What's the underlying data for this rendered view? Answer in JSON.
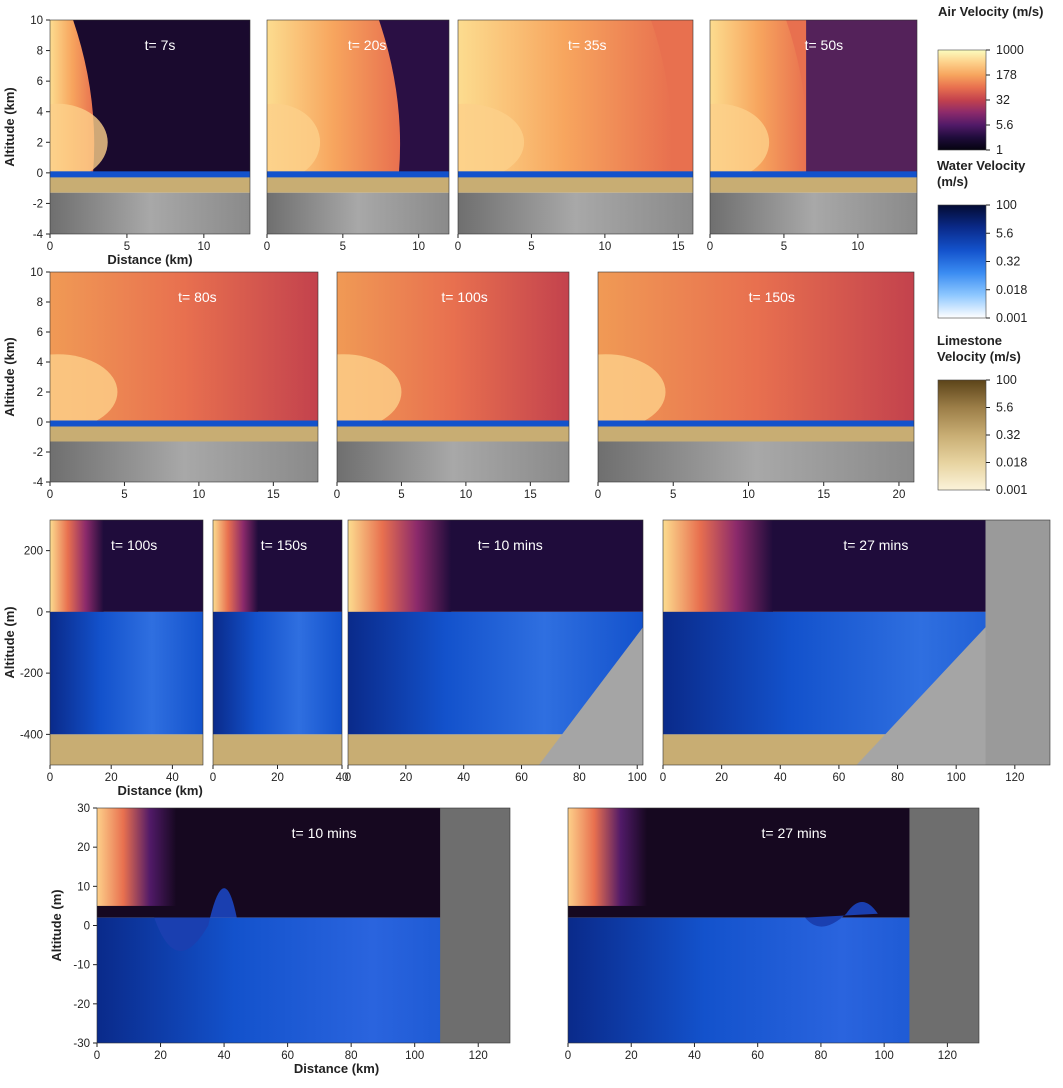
{
  "chart_data": [
    {
      "type": "heatmap",
      "time": "t= 7s",
      "xlim": [
        0,
        13
      ],
      "ylim": [
        -4,
        10
      ],
      "xticks": [
        0,
        5,
        10
      ],
      "yticks": [
        -4,
        -2,
        0,
        2,
        4,
        6,
        8,
        10
      ],
      "xlabel": "Distance (km)",
      "ylabel": "Altitude (km)"
    },
    {
      "type": "heatmap",
      "time": "t= 20s",
      "xlim": [
        0,
        12
      ],
      "ylim": [
        -4,
        10
      ],
      "xticks": [
        0,
        5,
        10
      ],
      "yticks": [],
      "xlabel": "",
      "ylabel": ""
    },
    {
      "type": "heatmap",
      "time": "t= 35s",
      "xlim": [
        0,
        16
      ],
      "ylim": [
        -4,
        10
      ],
      "xticks": [
        0,
        5,
        10,
        15
      ],
      "yticks": [],
      "xlabel": "",
      "ylabel": ""
    },
    {
      "type": "heatmap",
      "time": "t= 50s",
      "xlim": [
        0,
        14
      ],
      "ylim": [
        -4,
        10
      ],
      "xticks": [
        0,
        5,
        10
      ],
      "yticks": [],
      "xlabel": "",
      "ylabel": ""
    },
    {
      "type": "heatmap",
      "time": "t= 80s",
      "xlim": [
        0,
        18
      ],
      "ylim": [
        -4,
        10
      ],
      "xticks": [
        0,
        5,
        10,
        15
      ],
      "yticks": [
        -4,
        -2,
        0,
        2,
        4,
        6,
        8,
        10
      ],
      "xlabel": "",
      "ylabel": "Altitude (km)"
    },
    {
      "type": "heatmap",
      "time": "t= 100s",
      "xlim": [
        0,
        18
      ],
      "ylim": [
        -4,
        10
      ],
      "xticks": [
        0,
        5,
        10,
        15
      ],
      "yticks": [],
      "xlabel": "",
      "ylabel": ""
    },
    {
      "type": "heatmap",
      "time": "t= 150s",
      "xlim": [
        0,
        21
      ],
      "ylim": [
        -4,
        10
      ],
      "xticks": [
        0,
        5,
        10,
        15,
        20
      ],
      "yticks": [],
      "xlabel": "",
      "ylabel": ""
    },
    {
      "type": "heatmap",
      "time": "t= 100s",
      "xlim": [
        0,
        50
      ],
      "ylim": [
        -500,
        300
      ],
      "xticks": [
        0,
        20,
        40
      ],
      "yticks": [
        -400,
        -200,
        0,
        200
      ],
      "xlabel": "Distance (km)",
      "ylabel": "Altitude (m)"
    },
    {
      "type": "heatmap",
      "time": "t= 150s",
      "xlim": [
        0,
        40
      ],
      "ylim": [
        -500,
        300
      ],
      "xticks": [
        0,
        20,
        40
      ],
      "yticks": [],
      "xlabel": "",
      "ylabel": ""
    },
    {
      "type": "heatmap",
      "time": "t= 10 mins",
      "xlim": [
        0,
        102
      ],
      "ylim": [
        -500,
        300
      ],
      "xticks": [
        0,
        20,
        40,
        60,
        80,
        100
      ],
      "yticks": [],
      "xlabel": "",
      "ylabel": ""
    },
    {
      "type": "heatmap",
      "time": "t= 27 mins",
      "xlim": [
        0,
        132
      ],
      "ylim": [
        -500,
        300
      ],
      "xticks": [
        0,
        20,
        40,
        60,
        80,
        100,
        120
      ],
      "yticks": [],
      "xlabel": "",
      "ylabel": ""
    },
    {
      "type": "heatmap",
      "time": "t= 10 mins",
      "xlim": [
        0,
        130
      ],
      "ylim": [
        -30,
        30
      ],
      "xticks": [
        0,
        20,
        40,
        60,
        80,
        100,
        120
      ],
      "yticks": [
        -30,
        -20,
        -10,
        0,
        10,
        20,
        30
      ],
      "xlabel": "Distance (km)",
      "ylabel": "Altitude (m)"
    },
    {
      "type": "heatmap",
      "time": "t= 27 mins",
      "xlim": [
        0,
        130
      ],
      "ylim": [
        -30,
        30
      ],
      "xticks": [
        0,
        20,
        40,
        60,
        80,
        100,
        120
      ],
      "yticks": [],
      "xlabel": "",
      "ylabel": ""
    }
  ],
  "colorbars": [
    {
      "title": [
        "Air Velocity (m/s)"
      ],
      "ticks": [
        "1000",
        "178",
        "32",
        "5.6",
        "1"
      ],
      "palette": "air"
    },
    {
      "title": [
        "Water Velocity",
        "(m/s)"
      ],
      "ticks": [
        "100",
        "5.6",
        "0.32",
        "0.018",
        "0.001"
      ],
      "palette": "water"
    },
    {
      "title": [
        "Limestone",
        "Velocity (m/s)"
      ],
      "ticks": [
        "100",
        "5.6",
        "0.32",
        "0.018",
        "0.001"
      ],
      "palette": "lime"
    }
  ],
  "colors": {
    "air": [
      "#fcfdbf",
      "#fdd08a",
      "#f7a55e",
      "#e8704f",
      "#c3424d",
      "#8c2a6b",
      "#511a68",
      "#1f0c3b",
      "#05030f"
    ],
    "water": [
      "#ffffff",
      "#8ec8ff",
      "#3a8cf2",
      "#1352cc",
      "#0a2a8a",
      "#030b33"
    ],
    "lime": [
      "#fbf3d9",
      "#e7d3a0",
      "#c8ad73",
      "#9c7e48",
      "#5c4419"
    ],
    "rock": "#7d7d7d",
    "rock_light": "#b8b8b8"
  }
}
